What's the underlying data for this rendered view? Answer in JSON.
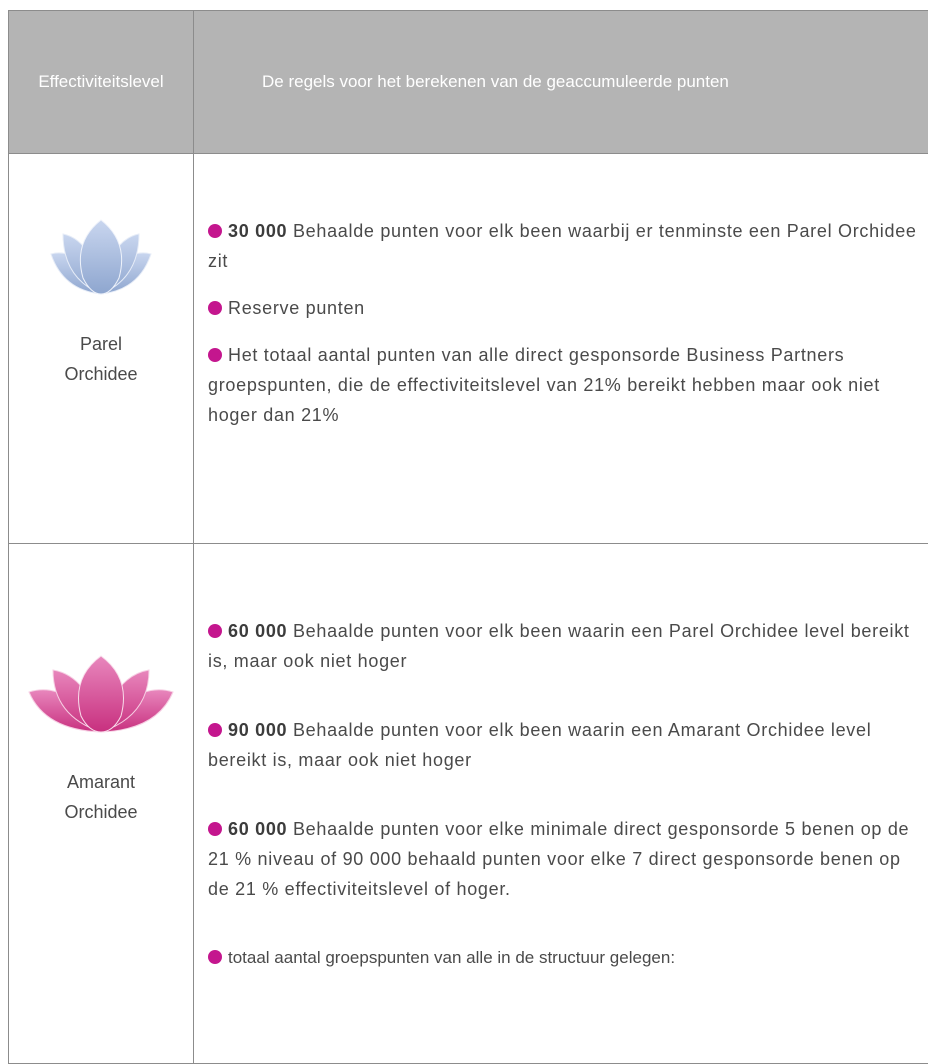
{
  "table": {
    "header": [
      "Effectiviteitslevel",
      "De regels voor het berekenen van de geaccumuleerde punten"
    ],
    "rows": [
      {
        "level": "Parel Orchidee",
        "items": [
          {
            "bold": "30 000",
            "text": "Behaalde punten voor elk been waarbij er tenminste een Parel Orchidee zit"
          },
          {
            "text": "Reserve punten"
          },
          {
            "text": "Het totaal aantal punten van alle direct gesponsorde Business Partners groepspunten, die de effectiviteitslevel van 21% bereikt hebben maar ook niet hoger dan 21%"
          }
        ]
      },
      {
        "level": "Amarant Orchidee",
        "items": [
          {
            "bold": "60 000",
            "text": "Behaalde punten voor elk been waarin een Parel Orchidee level bereikt is, maar ook niet hoger"
          },
          {
            "bold": "90 000",
            "text": "Behaalde punten voor elk been waarin een Amarant Orchidee level bereikt is, maar ook niet hoger"
          },
          {
            "bold": "60 000",
            "text": "Behaalde punten voor elke minimale direct gesponsorde 5 benen op de 21 % niveau of 90 000 behaald punten voor elke 7 direct gesponsorde benen op de 21 % effectiviteitslevel of hoger."
          },
          {
            "text": "totaal aantal groepspunten van alle in de structuur gelegen:"
          }
        ]
      }
    ]
  }
}
